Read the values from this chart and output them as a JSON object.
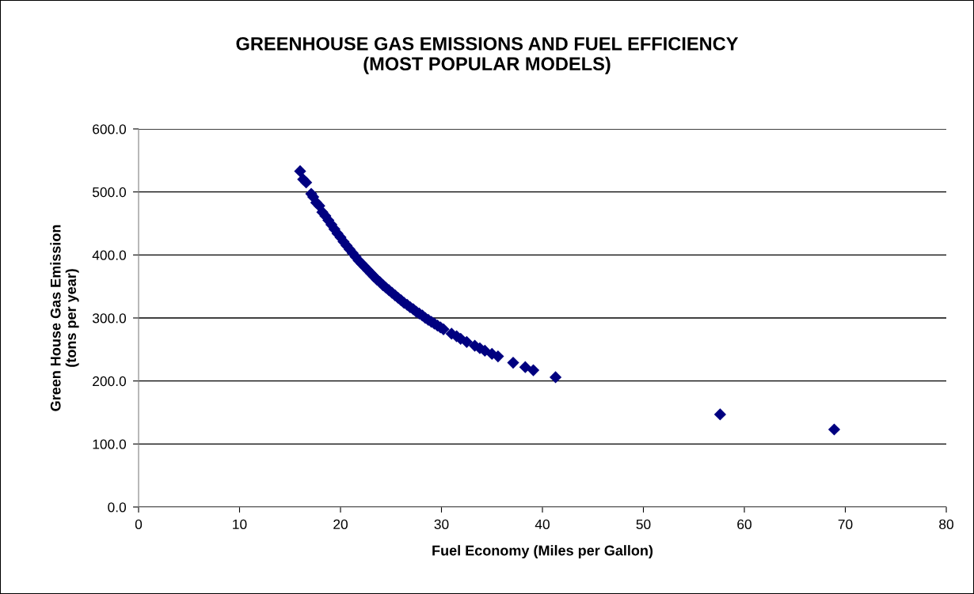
{
  "chart_data": {
    "type": "scatter",
    "title": "GREENHOUSE GAS EMISSIONS AND FUEL EFFICIENCY\n(MOST POPULAR MODELS)",
    "xlabel": "Fuel Economy (Miles per Gallon)",
    "ylabel": "Green House Gas Emission\n(tons per year)",
    "series": [
      {
        "color": "#000080",
        "x": [
          16.0,
          16.3,
          16.6,
          17.1,
          17.3,
          17.6,
          17.9,
          18.2,
          18.5,
          18.8,
          19.1,
          19.4,
          19.7,
          20.0,
          20.3,
          20.6,
          20.9,
          21.2,
          21.5,
          21.8,
          22.1,
          22.4,
          22.7,
          23.0,
          23.3,
          23.6,
          23.9,
          24.2,
          24.5,
          24.8,
          25.1,
          25.4,
          25.7,
          26.0,
          26.3,
          26.6,
          26.9,
          27.2,
          27.5,
          27.8,
          28.1,
          28.4,
          28.7,
          29.0,
          29.3,
          29.6,
          29.9,
          30.2,
          31.0,
          31.5,
          31.9,
          32.5,
          33.3,
          33.8,
          34.3,
          35.0,
          35.6,
          37.1,
          38.3,
          39.1,
          41.3,
          57.6,
          68.9
        ],
        "values": [
          533,
          520,
          515,
          497,
          492,
          483,
          478,
          468,
          462,
          455,
          448,
          441,
          434,
          428,
          421,
          415,
          409,
          403,
          397,
          391,
          386,
          381,
          376,
          371,
          366,
          361,
          357,
          352,
          348,
          344,
          340,
          336,
          332,
          328,
          324,
          321,
          317,
          314,
          310,
          307,
          304,
          300,
          297,
          294,
          291,
          288,
          285,
          282,
          275,
          271,
          267,
          262,
          256,
          252,
          248,
          243,
          239,
          229,
          222,
          217,
          206,
          147,
          123
        ]
      }
    ],
    "marker": "diamond",
    "grid": "y",
    "legend": false,
    "xlim": [
      0,
      80
    ],
    "xticks": [
      0,
      10,
      20,
      30,
      40,
      50,
      60,
      70,
      80
    ],
    "ylim": [
      0,
      600
    ],
    "yticks": [
      {
        "value": 0,
        "label": "0.0"
      },
      {
        "value": 100,
        "label": "100.0"
      },
      {
        "value": 200,
        "label": "200.0"
      },
      {
        "value": 300,
        "label": "300.0"
      },
      {
        "value": 400,
        "label": "400.0"
      },
      {
        "value": 500,
        "label": "500.0"
      },
      {
        "value": 600,
        "label": "600.0"
      }
    ]
  }
}
